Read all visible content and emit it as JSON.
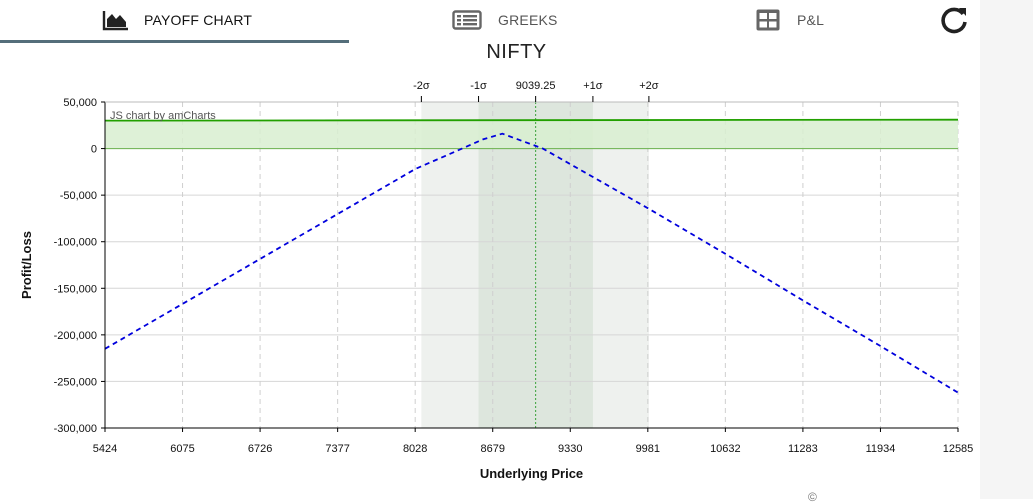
{
  "tabs": [
    {
      "label": "PAYOFF CHART",
      "icon": "area-chart-icon",
      "active": true
    },
    {
      "label": "GREEKS",
      "icon": "list-alt-icon",
      "active": false
    },
    {
      "label": "P&L",
      "icon": "table-icon",
      "active": false
    }
  ],
  "refresh_icon": "refresh-icon",
  "credit": "JS chart by amCharts",
  "trailing_text": "©",
  "colors": {
    "tab_underline": "#546e7a",
    "payoff_expiry": "#0000dd",
    "payoff_target": "#22a000",
    "profit_zone": "#d8efd0",
    "sigma_band_outer": "#eef1ee",
    "sigma_band_inner": "#dde6dd",
    "spot_line": "#3aa23a"
  },
  "chart_data": {
    "type": "line",
    "title": "NIFTY",
    "xlabel": "Underlying Price",
    "ylabel": "Profit/Loss",
    "xlim": [
      5424,
      12585
    ],
    "ylim": [
      -300000,
      50000
    ],
    "x_ticks": [
      5424,
      6075,
      6726,
      7377,
      8028,
      8679,
      9330,
      9981,
      10632,
      11283,
      11934,
      12585
    ],
    "y_ticks": [
      50000,
      0,
      -50000,
      -100000,
      -150000,
      -200000,
      -250000,
      -300000
    ],
    "y_tick_labels": [
      "50,000",
      "0",
      "-50,000",
      "-100,000",
      "-150,000",
      "-200,000",
      "-250,000",
      "-300,000"
    ],
    "grid": true,
    "spot": {
      "value": 9039.25,
      "label": "9039.25"
    },
    "sigma_levels": [
      {
        "label": "-2σ",
        "value": 8080
      },
      {
        "label": "-1σ",
        "value": 8560
      },
      {
        "label": "+1σ",
        "value": 9520
      },
      {
        "label": "+2σ",
        "value": 9990
      }
    ],
    "series": [
      {
        "style": "dashed",
        "color": "#0000dd",
        "x": [
          5424,
          8028,
          8600,
          8760,
          9100,
          9981,
          10632,
          11283,
          11934,
          12585
        ],
        "y": [
          -215000,
          -22000,
          10000,
          16000,
          0,
          -64000,
          -113000,
          -163000,
          -212000,
          -262000
        ]
      },
      {
        "style": "solid",
        "color": "#22a000",
        "x": [
          5424,
          12585
        ],
        "y": [
          30000,
          31000
        ]
      }
    ]
  }
}
